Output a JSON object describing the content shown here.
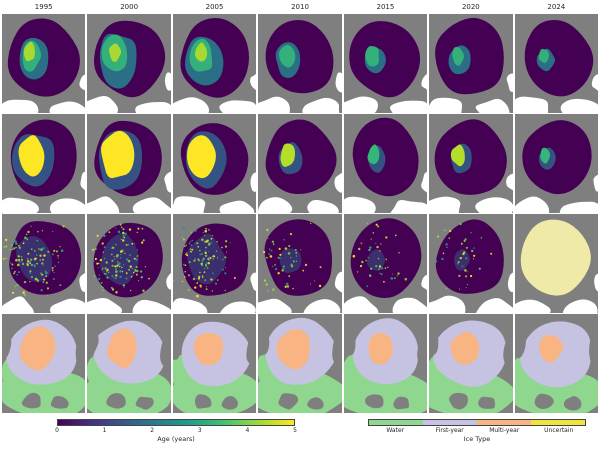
{
  "figure": {
    "years": [
      "1995",
      "2000",
      "2005",
      "2010",
      "2015",
      "2020",
      "2024"
    ],
    "row_count": 4,
    "background": "#ffffff"
  },
  "palette": {
    "land_gray": "#7f7f7f",
    "open_water_white": "#ffffff",
    "pale_yellow_uncertain_map": "#efeaa8",
    "viridis": [
      "#440154",
      "#482878",
      "#3e4989",
      "#31688e",
      "#26828e",
      "#1f9e89",
      "#35b779",
      "#6ece58",
      "#b5de2b",
      "#fde725"
    ],
    "ice_type": {
      "water": "#8fd78f",
      "first_year": "#c6c2e2",
      "multi_year": "#f8b583",
      "uncertain": "#f0e442"
    }
  },
  "colorbar": {
    "label": "Age (years)",
    "ticks": [
      "0",
      "1",
      "2",
      "3",
      "4",
      "5"
    ]
  },
  "ice_type_legend": {
    "label": "Ice Type",
    "entries": [
      {
        "label": "Water",
        "color": "#8fd78f"
      },
      {
        "label": "First-year",
        "color": "#c6c2e2"
      },
      {
        "label": "Multi-year",
        "color": "#f8b583"
      },
      {
        "label": "Uncertain",
        "color": "#f0e442"
      }
    ]
  },
  "chart_data": {
    "type": "heatmap",
    "title": "",
    "categories": [
      "1995",
      "2000",
      "2005",
      "2010",
      "2015",
      "2020",
      "2024"
    ],
    "rows": [
      {
        "name": "sea-ice-age-map-row-1",
        "legend": "Age (years)",
        "old_ice_extent": [
          0.65,
          0.9,
          0.8,
          0.45,
          0.4,
          0.35,
          0.25
        ]
      },
      {
        "name": "sea-ice-age-map-row-2",
        "legend": "Age (years)",
        "old_ice_extent": [
          0.8,
          0.95,
          0.85,
          0.4,
          0.3,
          0.35,
          0.22
        ]
      },
      {
        "name": "sea-ice-age-map-row-3",
        "legend": "Age (years)",
        "old_ice_extent": [
          0.75,
          0.85,
          0.8,
          0.35,
          0.3,
          0.25,
          0
        ],
        "last_panel": "uncertain-pale-yellow"
      },
      {
        "name": "sea-ice-type-map-row-4",
        "legend": "Ice Type",
        "multiyear_extent": [
          0.55,
          0.5,
          0.45,
          0.55,
          0.35,
          0.45,
          0.3
        ]
      }
    ],
    "colorbar": {
      "label": "Age (years)",
      "range": [
        0,
        5
      ],
      "ticks": [
        0,
        1,
        2,
        3,
        4,
        5
      ],
      "palette": "viridis"
    },
    "legend": {
      "label": "Ice Type",
      "entries": [
        "Water",
        "First-year",
        "Multi-year",
        "Uncertain"
      ],
      "position": "bottom-right"
    }
  }
}
